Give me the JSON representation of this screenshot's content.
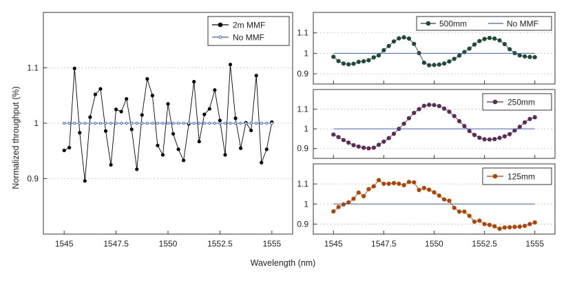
{
  "figure": {
    "xlabel": "Wavelength (nm)",
    "ylabel": "Normalized throughput (%)"
  },
  "chart_data": [
    {
      "type": "line",
      "id": "left",
      "xlabel": "Wavelength (nm)",
      "ylabel": "Normalized throughput (%)",
      "xlim": [
        1544,
        1556
      ],
      "ylim": [
        0.8,
        1.2
      ],
      "xticks": [
        1545,
        1547.5,
        1550,
        1552.5,
        1555
      ],
      "xtick_labels": [
        "1545",
        "1547.5",
        "1550",
        "1552.5",
        "1555"
      ],
      "yticks": [
        0.9,
        1.0,
        1.1
      ],
      "ytick_labels": [
        "0.9",
        "1",
        "1.1"
      ],
      "grid": "horizontal dotted",
      "legend_position": "top-right",
      "series": [
        {
          "name": "2m MMF",
          "color": "#000000",
          "marker": "filled circle",
          "x": [
            1545.0,
            1545.25,
            1545.5,
            1545.75,
            1546.0,
            1546.25,
            1546.5,
            1546.75,
            1547.0,
            1547.25,
            1547.5,
            1547.75,
            1548.0,
            1548.25,
            1548.5,
            1548.75,
            1549.0,
            1549.25,
            1549.5,
            1549.75,
            1550.0,
            1550.25,
            1550.5,
            1550.75,
            1551.0,
            1551.25,
            1551.5,
            1551.75,
            1552.0,
            1552.25,
            1552.5,
            1552.75,
            1553.0,
            1553.25,
            1553.5,
            1553.75,
            1554.0,
            1554.25,
            1554.5,
            1554.75,
            1555.0
          ],
          "values": [
            0.951,
            0.956,
            1.099,
            0.983,
            0.896,
            1.011,
            1.052,
            1.062,
            0.986,
            0.925,
            1.025,
            1.021,
            1.044,
            0.989,
            0.917,
            1.015,
            1.08,
            1.05,
            0.96,
            0.943,
            1.035,
            0.981,
            0.953,
            0.933,
            0.999,
            1.075,
            0.967,
            1.016,
            1.026,
            1.06,
            1.005,
            0.943,
            1.106,
            1.009,
            0.955,
            1.001,
            0.987,
            1.086,
            0.929,
            0.953,
            1.002
          ]
        },
        {
          "name": "No MMF",
          "color": "#3d5fc4",
          "marker": "small open circle",
          "x": [
            1545.0,
            1545.25,
            1545.5,
            1545.75,
            1546.0,
            1546.25,
            1546.5,
            1546.75,
            1547.0,
            1547.25,
            1547.5,
            1547.75,
            1548.0,
            1548.25,
            1548.5,
            1548.75,
            1549.0,
            1549.25,
            1549.5,
            1549.75,
            1550.0,
            1550.25,
            1550.5,
            1550.75,
            1551.0,
            1551.25,
            1551.5,
            1551.75,
            1552.0,
            1552.25,
            1552.5,
            1552.75,
            1553.0,
            1553.25,
            1553.5,
            1553.75,
            1554.0,
            1554.25,
            1554.5,
            1554.75,
            1555.0
          ],
          "values": [
            1.0,
            1.0,
            1.0,
            1.0,
            1.0,
            1.0,
            1.0,
            1.0,
            1.0,
            1.0,
            1.0,
            1.0,
            1.0,
            1.0,
            1.0,
            1.0,
            1.0,
            1.0,
            1.0,
            1.0,
            1.0,
            1.0,
            1.0,
            1.0,
            1.0,
            1.0,
            1.0,
            1.0,
            1.0,
            1.0,
            1.0,
            1.0,
            1.0,
            1.0,
            1.0,
            1.0,
            1.0,
            1.0,
            1.0,
            1.0,
            1.0
          ]
        }
      ]
    },
    {
      "type": "line",
      "id": "right-top",
      "xlim": [
        1544,
        1556
      ],
      "ylim": [
        0.85,
        1.2
      ],
      "yticks": [
        0.9,
        1.0,
        1.1
      ],
      "ytick_labels": [
        "0.9",
        "1",
        "1.1"
      ],
      "grid": "horizontal dotted",
      "legend_position": "top-right",
      "series": [
        {
          "name": "500mm",
          "color": "#1f4a36",
          "marker": "filled circle",
          "x": [
            1545.0,
            1545.25,
            1545.5,
            1545.75,
            1546.0,
            1546.25,
            1546.5,
            1546.75,
            1547.0,
            1547.25,
            1547.5,
            1547.75,
            1548.0,
            1548.25,
            1548.5,
            1548.75,
            1549.0,
            1549.25,
            1549.5,
            1549.75,
            1550.0,
            1550.25,
            1550.5,
            1550.75,
            1551.0,
            1551.25,
            1551.5,
            1551.75,
            1552.0,
            1552.25,
            1552.5,
            1552.75,
            1553.0,
            1553.25,
            1553.5,
            1553.75,
            1554.0,
            1554.25,
            1554.5,
            1554.75,
            1555.0
          ],
          "values": [
            0.983,
            0.962,
            0.95,
            0.946,
            0.949,
            0.958,
            0.961,
            0.966,
            0.98,
            0.99,
            1.015,
            1.036,
            1.058,
            1.073,
            1.078,
            1.072,
            1.046,
            1.001,
            0.954,
            0.942,
            0.943,
            0.945,
            0.95,
            0.96,
            0.973,
            0.989,
            1.006,
            1.023,
            1.043,
            1.06,
            1.07,
            1.075,
            1.072,
            1.063,
            1.045,
            1.02,
            1.001,
            0.99,
            0.985,
            0.982,
            0.981
          ]
        },
        {
          "name": "No MMF",
          "color": "#3d5fc4",
          "marker": "none",
          "x": [
            1545.0,
            1555.0
          ],
          "values": [
            1.0,
            1.0
          ]
        }
      ]
    },
    {
      "type": "line",
      "id": "right-middle",
      "xlim": [
        1544,
        1556
      ],
      "ylim": [
        0.85,
        1.2
      ],
      "yticks": [
        0.9,
        1.0,
        1.1
      ],
      "ytick_labels": [
        "0.9",
        "1",
        "1.1"
      ],
      "grid": "horizontal dotted",
      "legend_position": "top-right",
      "series": [
        {
          "name": "250mm",
          "color": "#5e2a57",
          "marker": "filled circle",
          "x": [
            1545.0,
            1545.25,
            1545.5,
            1545.75,
            1546.0,
            1546.25,
            1546.5,
            1546.75,
            1547.0,
            1547.25,
            1547.5,
            1547.75,
            1548.0,
            1548.25,
            1548.5,
            1548.75,
            1549.0,
            1549.25,
            1549.5,
            1549.75,
            1550.0,
            1550.25,
            1550.5,
            1550.75,
            1551.0,
            1551.25,
            1551.5,
            1551.75,
            1552.0,
            1552.25,
            1552.5,
            1552.75,
            1553.0,
            1553.25,
            1553.5,
            1553.75,
            1554.0,
            1554.25,
            1554.5,
            1554.75,
            1555.0
          ],
          "values": [
            0.971,
            0.958,
            0.943,
            0.93,
            0.917,
            0.91,
            0.904,
            0.901,
            0.904,
            0.919,
            0.935,
            0.953,
            0.975,
            1.0,
            1.026,
            1.054,
            1.081,
            1.1,
            1.117,
            1.122,
            1.121,
            1.116,
            1.103,
            1.087,
            1.065,
            1.039,
            1.014,
            0.989,
            0.969,
            0.955,
            0.947,
            0.946,
            0.948,
            0.954,
            0.962,
            0.973,
            0.992,
            1.01,
            1.033,
            1.05,
            1.059
          ]
        },
        {
          "name": "No MMF",
          "color": "#3d5fc4",
          "marker": "none",
          "x": [
            1545.0,
            1555.0
          ],
          "values": [
            1.0,
            1.0
          ]
        }
      ]
    },
    {
      "type": "line",
      "id": "right-bottom",
      "xlabel": "Wavelength (nm)",
      "xlim": [
        1544,
        1556
      ],
      "ylim": [
        0.85,
        1.2
      ],
      "xticks": [
        1545,
        1547.5,
        1550,
        1552.5,
        1555
      ],
      "xtick_labels": [
        "1545",
        "1547.5",
        "1550",
        "1552.5",
        "1555"
      ],
      "yticks": [
        0.9,
        1.0,
        1.1
      ],
      "ytick_labels": [
        "0.9",
        "1",
        "1.1"
      ],
      "grid": "horizontal dotted",
      "legend_position": "top-right",
      "series": [
        {
          "name": "125mm",
          "color": "#b34200",
          "marker": "filled circle",
          "x": [
            1545.0,
            1545.25,
            1545.5,
            1545.75,
            1546.0,
            1546.25,
            1546.5,
            1546.75,
            1547.0,
            1547.25,
            1547.5,
            1547.75,
            1548.0,
            1548.25,
            1548.5,
            1548.75,
            1549.0,
            1549.25,
            1549.5,
            1549.75,
            1550.0,
            1550.25,
            1550.5,
            1550.75,
            1551.0,
            1551.25,
            1551.5,
            1551.75,
            1552.0,
            1552.25,
            1552.5,
            1552.75,
            1553.0,
            1553.25,
            1553.5,
            1553.75,
            1554.0,
            1554.25,
            1554.5,
            1554.75,
            1555.0
          ],
          "values": [
            0.963,
            0.985,
            0.998,
            1.008,
            1.026,
            1.057,
            1.039,
            1.074,
            1.088,
            1.119,
            1.101,
            1.101,
            1.104,
            1.101,
            1.094,
            1.11,
            1.108,
            1.07,
            1.08,
            1.071,
            1.058,
            1.042,
            1.023,
            1.016,
            0.981,
            0.962,
            0.962,
            0.941,
            0.912,
            0.917,
            0.9,
            0.896,
            0.889,
            0.877,
            0.883,
            0.884,
            0.886,
            0.887,
            0.891,
            0.9,
            0.908
          ]
        },
        {
          "name": "No MMF",
          "color": "#3d5fc4",
          "marker": "none",
          "x": [
            1545.0,
            1555.0
          ],
          "values": [
            1.0,
            1.0
          ]
        }
      ]
    }
  ]
}
